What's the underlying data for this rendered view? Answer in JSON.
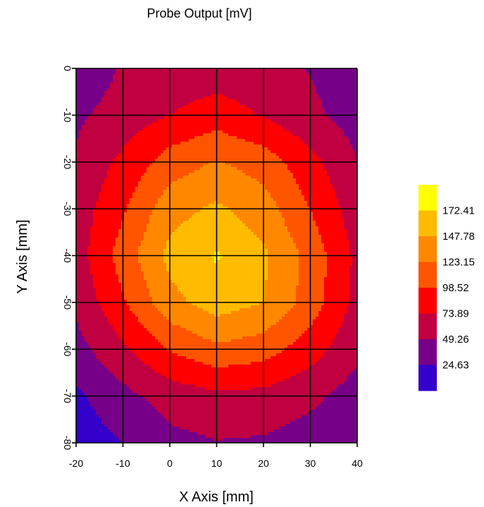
{
  "chart_data": {
    "type": "contour",
    "title": "Probe Output [mV]",
    "xlabel": "X Axis [mm]",
    "ylabel": "Y Axis [mm]",
    "xlim": [
      -20,
      40
    ],
    "ylim": [
      -80,
      0
    ],
    "grid": true,
    "x_ticks": [
      "-20",
      "-10",
      "0",
      "10",
      "20",
      "30",
      "40"
    ],
    "y_ticks": [
      "-80",
      "-70",
      "-60",
      "-50",
      "-40",
      "-30",
      "-20",
      "-10",
      "0"
    ],
    "x": [
      -20,
      -10,
      0,
      10,
      20,
      30,
      40
    ],
    "y": [
      0,
      -10,
      -20,
      -30,
      -40,
      -50,
      -60,
      -70,
      -80
    ],
    "z": [
      [
        30,
        52,
        58,
        60,
        58,
        48,
        30
      ],
      [
        45,
        60,
        74,
        86,
        72,
        55,
        38
      ],
      [
        52,
        80,
        110,
        125,
        112,
        82,
        50
      ],
      [
        60,
        95,
        138,
        152,
        135,
        98,
        60
      ],
      [
        62,
        110,
        155,
        175,
        152,
        115,
        68
      ],
      [
        55,
        95,
        140,
        160,
        148,
        112,
        66
      ],
      [
        40,
        70,
        100,
        118,
        110,
        85,
        55
      ],
      [
        20,
        42,
        60,
        68,
        66,
        55,
        38
      ],
      [
        10,
        25,
        42,
        48,
        46,
        38,
        32
      ]
    ],
    "levels": [
      24.63,
      49.26,
      73.89,
      98.52,
      123.15,
      147.78,
      172.41
    ],
    "level_labels": [
      "172.41",
      "147.78",
      "123.15",
      "98.52",
      "73.89",
      "49.26",
      "24.63"
    ],
    "legend_position": "right",
    "colors": [
      "#3300cc",
      "#770088",
      "#c00040",
      "#ff0000",
      "#ff5500",
      "#ff8800",
      "#ffbb00",
      "#ffff00"
    ]
  }
}
